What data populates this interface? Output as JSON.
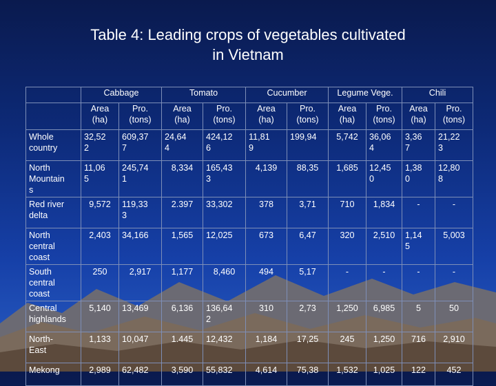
{
  "title_line1": "Table 4:   Leading crops of vegetables cultivated",
  "title_line2": "in Vietnam",
  "crops": [
    "Cabbage",
    "Tomato",
    "Cucumber",
    "Legume Vege.",
    "Chili"
  ],
  "sub": {
    "area1": "Area",
    "area2": "(ha)",
    "pro1": "Pro.",
    "pro2": "(tons)"
  },
  "rows": [
    {
      "region": [
        "Whole",
        "country"
      ],
      "cells": [
        [
          "32,52",
          "2"
        ],
        [
          "609,37",
          "7"
        ],
        [
          "24,64",
          "4"
        ],
        [
          "424,12",
          "6"
        ],
        [
          "11,81",
          "9"
        ],
        [
          "199,94"
        ],
        [
          "5,742"
        ],
        [
          "36,06",
          "4"
        ],
        [
          "3,36",
          "7"
        ],
        [
          "21,22",
          "3"
        ]
      ]
    },
    {
      "region": [
        "North",
        "Mountain",
        "s"
      ],
      "cells": [
        [
          "11,06",
          "5"
        ],
        [
          "245,74",
          "1"
        ],
        [
          "8,334"
        ],
        [
          "165,43",
          "3"
        ],
        [
          "4,139"
        ],
        [
          "88,35"
        ],
        [
          "1,685"
        ],
        [
          "12,45",
          "0"
        ],
        [
          "1,38",
          "0"
        ],
        [
          "12,80",
          "8"
        ]
      ]
    },
    {
      "region": [
        "Red river",
        "delta"
      ],
      "cells": [
        [
          "9,572"
        ],
        [
          "119,33",
          "3"
        ],
        [
          "2.397"
        ],
        [
          "33,302"
        ],
        [
          "378"
        ],
        [
          "3,71"
        ],
        [
          "710"
        ],
        [
          "1,834"
        ],
        [
          "-"
        ],
        [
          "-"
        ]
      ]
    },
    {
      "region": [
        "North",
        "central",
        "coast"
      ],
      "cells": [
        [
          "2,403"
        ],
        [
          "34,166"
        ],
        [
          "1,565"
        ],
        [
          "12,025"
        ],
        [
          "673"
        ],
        [
          "6,47"
        ],
        [
          "320"
        ],
        [
          "2,510"
        ],
        [
          "1,14",
          "5"
        ],
        [
          "5,003"
        ]
      ]
    },
    {
      "region": [
        "South",
        "central",
        "coast"
      ],
      "cells": [
        [
          "250"
        ],
        [
          "2,917"
        ],
        [
          "1,177"
        ],
        [
          "8,460"
        ],
        [
          "494"
        ],
        [
          "5,17"
        ],
        [
          "-"
        ],
        [
          "-"
        ],
        [
          "-"
        ],
        [
          "-"
        ]
      ]
    },
    {
      "region": [
        "Central",
        "highlands"
      ],
      "cells": [
        [
          "5,140"
        ],
        [
          "13,469"
        ],
        [
          "6,136"
        ],
        [
          "136,64",
          "2"
        ],
        [
          "310"
        ],
        [
          "2,73"
        ],
        [
          "1,250"
        ],
        [
          "6,985"
        ],
        [
          "5"
        ],
        [
          "50"
        ]
      ]
    },
    {
      "region": [
        "North-",
        "East"
      ],
      "cells": [
        [
          "1,133"
        ],
        [
          "10,047"
        ],
        [
          "1.445"
        ],
        [
          "12,432"
        ],
        [
          "1,184"
        ],
        [
          "17,25"
        ],
        [
          "245"
        ],
        [
          "1,250"
        ],
        [
          "716"
        ],
        [
          "2,910"
        ]
      ]
    },
    {
      "region": [
        "Mekong"
      ],
      "cells": [
        [
          "2,989"
        ],
        [
          "62,482"
        ],
        [
          "3,590"
        ],
        [
          "55,832"
        ],
        [
          "4,614"
        ],
        [
          "75,38"
        ],
        [
          "1,532"
        ],
        [
          "1,025"
        ],
        [
          "122"
        ],
        [
          "452"
        ]
      ]
    }
  ]
}
